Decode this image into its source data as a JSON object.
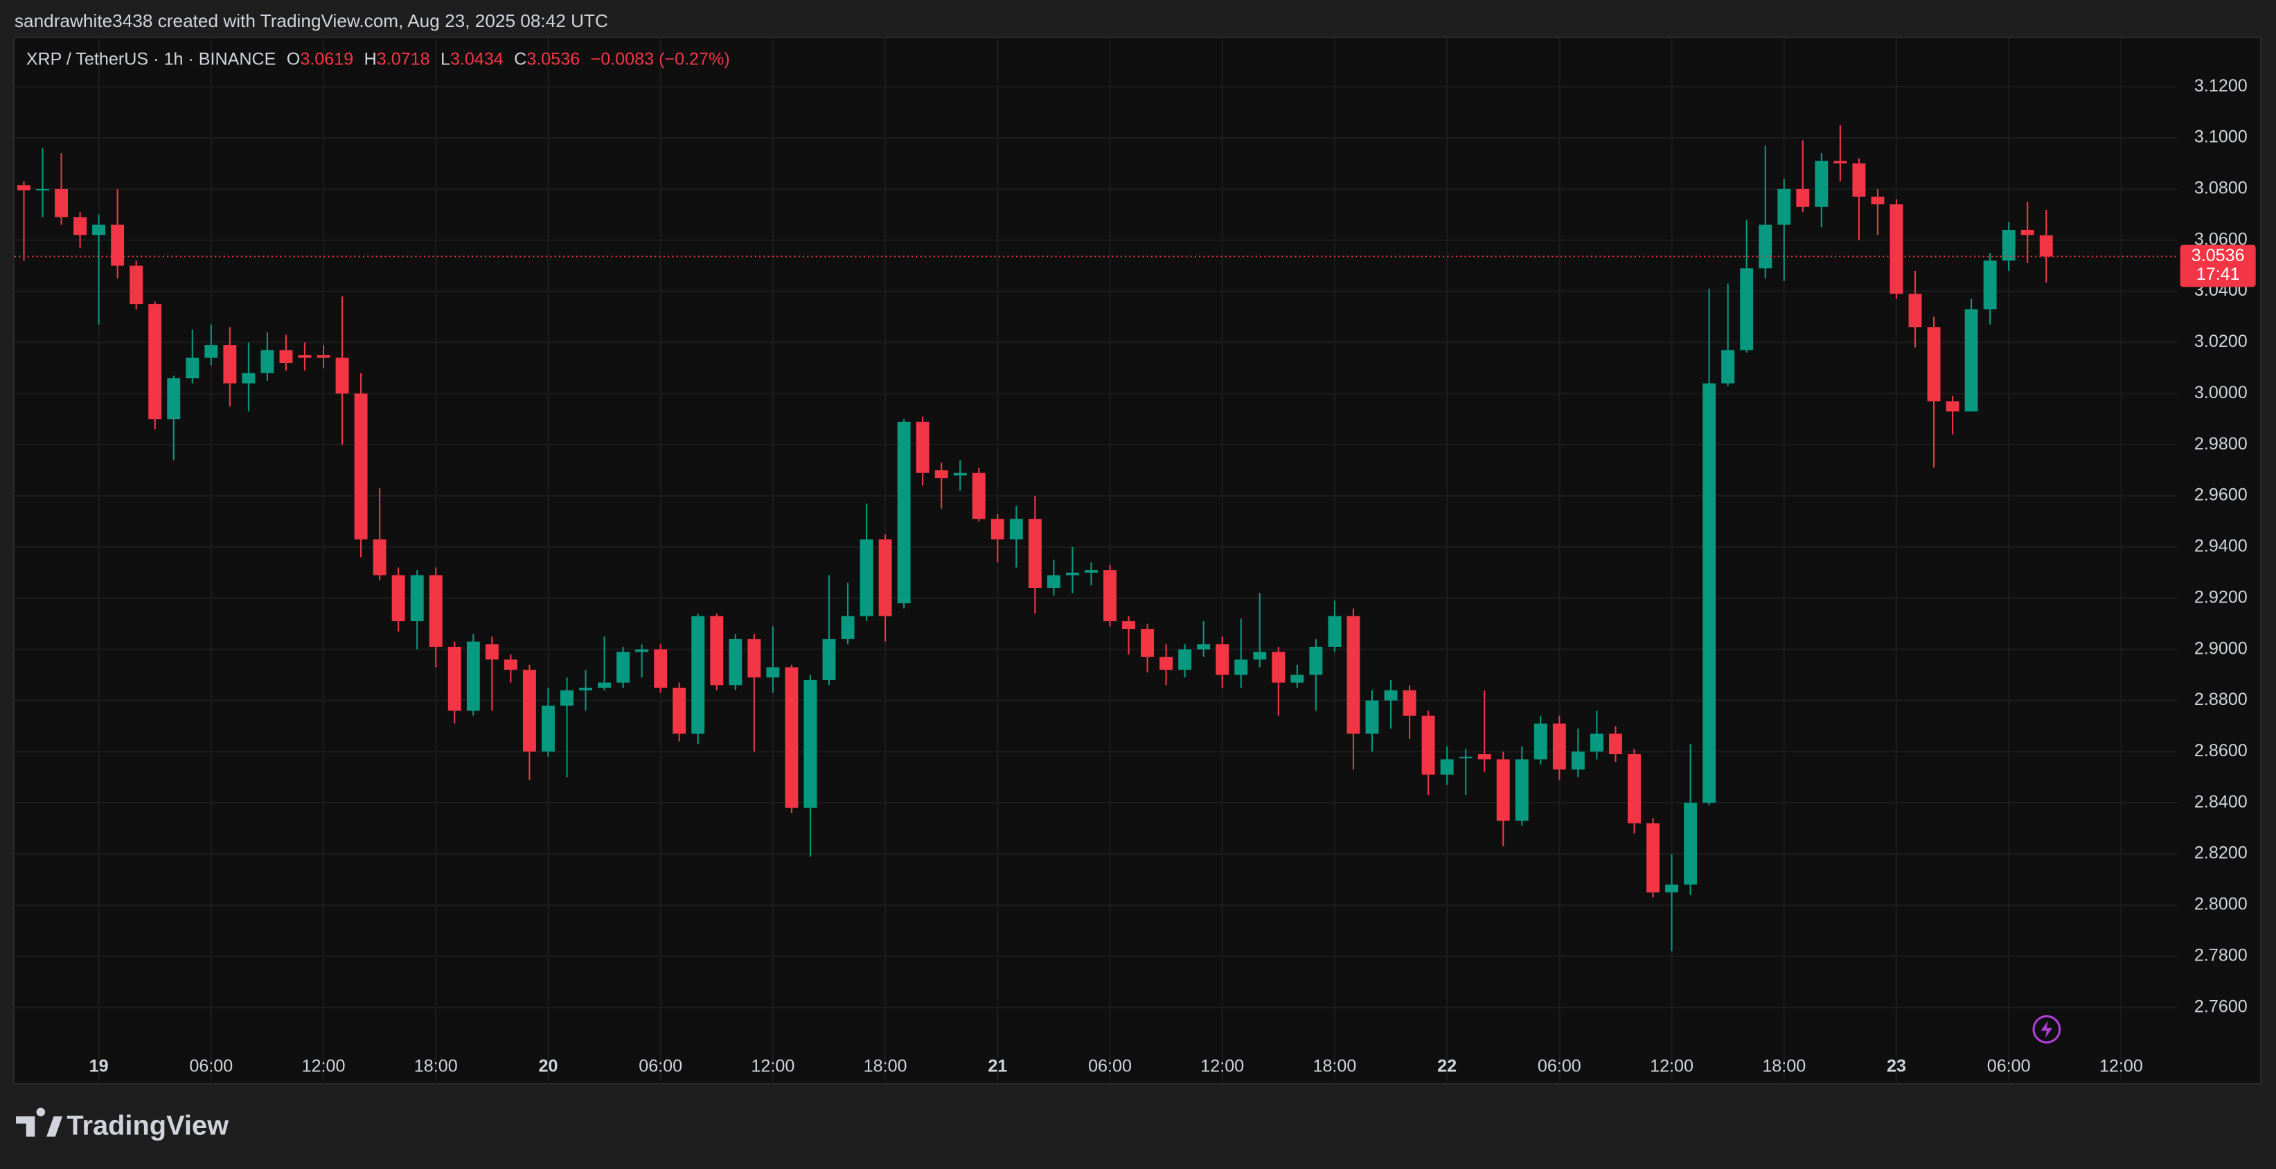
{
  "header": "sandrawhite3438 created with TradingView.com, Aug 23, 2025 08:42 UTC",
  "brand": "TradingView",
  "chart_data": {
    "type": "candlestick",
    "symbol": "XRP / TetherUS · 1h · BINANCE",
    "ohlc_keys": [
      "O",
      "H",
      "L",
      "C"
    ],
    "change": {
      "value": -0.0083,
      "label": "−0.0083"
    },
    "change_pct": {
      "value": -0.27,
      "label": "(−0.27%)"
    },
    "countdown": "17:41",
    "up_color": "#089981",
    "down_color": "#f23645",
    "grid": true,
    "x": [
      "Aug 18 20:00",
      "Aug 18 21:00",
      "Aug 18 22:00",
      "Aug 18 23:00",
      "Aug 19 00:00",
      "Aug 19 01:00",
      "Aug 19 02:00",
      "Aug 19 03:00",
      "Aug 19 04:00",
      "Aug 19 05:00",
      "Aug 19 06:00",
      "Aug 19 07:00",
      "Aug 19 08:00",
      "Aug 19 09:00",
      "Aug 19 10:00",
      "Aug 19 11:00",
      "Aug 19 12:00",
      "Aug 19 13:00",
      "Aug 19 14:00",
      "Aug 19 15:00",
      "Aug 19 16:00",
      "Aug 19 17:00",
      "Aug 19 18:00",
      "Aug 19 19:00",
      "Aug 19 20:00",
      "Aug 19 21:00",
      "Aug 19 22:00",
      "Aug 19 23:00",
      "Aug 20 00:00",
      "Aug 20 01:00",
      "Aug 20 02:00",
      "Aug 20 03:00",
      "Aug 20 04:00",
      "Aug 20 05:00",
      "Aug 20 06:00",
      "Aug 20 07:00",
      "Aug 20 08:00",
      "Aug 20 09:00",
      "Aug 20 10:00",
      "Aug 20 11:00",
      "Aug 20 12:00",
      "Aug 20 13:00",
      "Aug 20 14:00",
      "Aug 20 15:00",
      "Aug 20 16:00",
      "Aug 20 17:00",
      "Aug 20 18:00",
      "Aug 20 19:00",
      "Aug 20 20:00",
      "Aug 20 21:00",
      "Aug 20 22:00",
      "Aug 20 23:00",
      "Aug 21 00:00",
      "Aug 21 01:00",
      "Aug 21 02:00",
      "Aug 21 03:00",
      "Aug 21 04:00",
      "Aug 21 05:00",
      "Aug 21 06:00",
      "Aug 21 07:00",
      "Aug 21 08:00",
      "Aug 21 09:00",
      "Aug 21 10:00",
      "Aug 21 11:00",
      "Aug 21 12:00",
      "Aug 21 13:00",
      "Aug 21 14:00",
      "Aug 21 15:00",
      "Aug 21 16:00",
      "Aug 21 17:00",
      "Aug 21 18:00",
      "Aug 21 19:00",
      "Aug 21 20:00",
      "Aug 21 21:00",
      "Aug 21 22:00",
      "Aug 21 23:00",
      "Aug 22 00:00",
      "Aug 22 01:00",
      "Aug 22 02:00",
      "Aug 22 03:00",
      "Aug 22 04:00",
      "Aug 22 05:00",
      "Aug 22 06:00",
      "Aug 22 07:00",
      "Aug 22 08:00",
      "Aug 22 09:00",
      "Aug 22 10:00",
      "Aug 22 11:00",
      "Aug 22 12:00",
      "Aug 22 13:00",
      "Aug 22 14:00",
      "Aug 22 15:00",
      "Aug 22 16:00",
      "Aug 22 17:00",
      "Aug 22 18:00",
      "Aug 22 19:00",
      "Aug 22 20:00",
      "Aug 22 21:00",
      "Aug 22 22:00",
      "Aug 22 23:00",
      "Aug 23 00:00",
      "Aug 23 01:00",
      "Aug 23 02:00",
      "Aug 23 03:00",
      "Aug 23 04:00",
      "Aug 23 05:00",
      "Aug 23 06:00",
      "Aug 23 07:00",
      "Aug 23 08:00"
    ],
    "open": [
      3.0815,
      3.0795,
      3.08,
      3.069,
      3.062,
      3.066,
      3.05,
      3.035,
      2.99,
      3.006,
      3.014,
      3.019,
      3.004,
      3.008,
      3.017,
      3.015,
      3.015,
      3.014,
      3.0,
      2.943,
      2.929,
      2.911,
      2.929,
      2.901,
      2.876,
      2.902,
      2.896,
      2.892,
      2.86,
      2.878,
      2.884,
      2.885,
      2.887,
      2.899,
      2.9,
      2.885,
      2.867,
      2.913,
      2.886,
      2.904,
      2.889,
      2.893,
      2.838,
      2.888,
      2.904,
      2.913,
      2.943,
      2.918,
      2.989,
      2.97,
      2.968,
      2.969,
      2.951,
      2.943,
      2.951,
      2.924,
      2.929,
      2.93,
      2.931,
      2.911,
      2.908,
      2.897,
      2.892,
      2.9,
      2.902,
      2.89,
      2.896,
      2.899,
      2.887,
      2.89,
      2.901,
      2.913,
      2.867,
      2.88,
      2.884,
      2.874,
      2.851,
      2.858,
      2.859,
      2.857,
      2.833,
      2.857,
      2.871,
      2.853,
      2.86,
      2.867,
      2.859,
      2.832,
      2.805,
      2.808,
      2.84,
      3.004,
      3.017,
      3.049,
      3.066,
      3.08,
      3.073,
      3.091,
      3.09,
      3.077,
      3.074,
      3.039,
      3.026,
      2.997,
      2.993,
      3.033,
      3.052,
      3.064,
      3.0619
    ],
    "high": [
      3.083,
      3.096,
      3.094,
      3.071,
      3.07,
      3.08,
      3.052,
      3.036,
      3.007,
      3.025,
      3.027,
      3.026,
      3.02,
      3.024,
      3.023,
      3.02,
      3.019,
      3.038,
      3.008,
      2.963,
      2.932,
      2.931,
      2.932,
      2.903,
      2.906,
      2.905,
      2.898,
      2.894,
      2.885,
      2.889,
      2.892,
      2.905,
      2.901,
      2.902,
      2.902,
      2.887,
      2.914,
      2.914,
      2.906,
      2.906,
      2.909,
      2.894,
      2.89,
      2.929,
      2.926,
      2.957,
      2.945,
      2.99,
      2.991,
      2.973,
      2.974,
      2.971,
      2.953,
      2.956,
      2.96,
      2.935,
      2.94,
      2.934,
      2.933,
      2.913,
      2.91,
      2.902,
      2.902,
      2.911,
      2.905,
      2.912,
      2.922,
      2.901,
      2.894,
      2.904,
      2.919,
      2.916,
      2.884,
      2.888,
      2.886,
      2.876,
      2.862,
      2.861,
      2.884,
      2.86,
      2.862,
      2.874,
      2.874,
      2.869,
      2.876,
      2.87,
      2.861,
      2.834,
      2.82,
      2.863,
      3.041,
      3.043,
      3.068,
      3.097,
      3.084,
      3.099,
      3.094,
      3.105,
      3.092,
      3.08,
      3.076,
      3.048,
      3.03,
      2.999,
      3.037,
      3.055,
      3.067,
      3.075,
      3.0718
    ],
    "low": [
      3.052,
      3.069,
      3.066,
      3.057,
      3.027,
      3.045,
      3.033,
      2.986,
      2.974,
      3.004,
      3.011,
      2.995,
      2.993,
      3.005,
      3.009,
      3.009,
      3.01,
      2.98,
      2.936,
      2.927,
      2.907,
      2.9,
      2.893,
      2.871,
      2.874,
      2.876,
      2.887,
      2.849,
      2.858,
      2.85,
      2.876,
      2.884,
      2.885,
      2.889,
      2.883,
      2.864,
      2.863,
      2.884,
      2.884,
      2.86,
      2.883,
      2.836,
      2.819,
      2.886,
      2.902,
      2.911,
      2.903,
      2.916,
      2.964,
      2.955,
      2.962,
      2.95,
      2.934,
      2.932,
      2.914,
      2.921,
      2.922,
      2.925,
      2.909,
      2.898,
      2.891,
      2.886,
      2.889,
      2.897,
      2.885,
      2.885,
      2.893,
      2.874,
      2.885,
      2.876,
      2.899,
      2.853,
      2.86,
      2.869,
      2.865,
      2.843,
      2.847,
      2.843,
      2.852,
      2.823,
      2.831,
      2.855,
      2.849,
      2.85,
      2.857,
      2.856,
      2.828,
      2.803,
      2.782,
      2.804,
      2.839,
      3.003,
      3.016,
      3.045,
      3.044,
      3.071,
      3.065,
      3.083,
      3.06,
      3.062,
      3.037,
      3.018,
      2.971,
      2.984,
      2.993,
      3.027,
      3.048,
      3.051,
      3.0434
    ],
    "close": [
      3.0795,
      3.08,
      3.069,
      3.062,
      3.066,
      3.05,
      3.035,
      2.99,
      3.006,
      3.014,
      3.019,
      3.004,
      3.008,
      3.017,
      3.012,
      3.014,
      3.014,
      3.0,
      2.943,
      2.929,
      2.911,
      2.929,
      2.901,
      2.876,
      2.903,
      2.896,
      2.892,
      2.86,
      2.878,
      2.884,
      2.885,
      2.887,
      2.899,
      2.9,
      2.885,
      2.867,
      2.913,
      2.886,
      2.904,
      2.889,
      2.893,
      2.838,
      2.888,
      2.904,
      2.913,
      2.943,
      2.913,
      2.989,
      2.969,
      2.967,
      2.969,
      2.951,
      2.943,
      2.951,
      2.924,
      2.929,
      2.93,
      2.931,
      2.911,
      2.908,
      2.897,
      2.892,
      2.9,
      2.902,
      2.89,
      2.896,
      2.899,
      2.887,
      2.89,
      2.901,
      2.913,
      2.867,
      2.88,
      2.884,
      2.874,
      2.851,
      2.857,
      2.858,
      2.857,
      2.833,
      2.857,
      2.871,
      2.853,
      2.86,
      2.867,
      2.859,
      2.832,
      2.805,
      2.808,
      2.84,
      3.004,
      3.017,
      3.049,
      3.066,
      3.08,
      3.073,
      3.091,
      3.09,
      3.077,
      3.074,
      3.039,
      3.026,
      2.997,
      2.993,
      3.033,
      3.052,
      3.064,
      3.062,
      3.0536
    ],
    "ylim": [
      2.731,
      3.139
    ],
    "yticks": [
      {
        "value": 2.76,
        "label": "2.7600"
      },
      {
        "value": 2.78,
        "label": "2.7800"
      },
      {
        "value": 2.8,
        "label": "2.8000"
      },
      {
        "value": 2.82,
        "label": "2.8200"
      },
      {
        "value": 2.84,
        "label": "2.8400"
      },
      {
        "value": 2.86,
        "label": "2.8600"
      },
      {
        "value": 2.88,
        "label": "2.8800"
      },
      {
        "value": 2.9,
        "label": "2.9000"
      },
      {
        "value": 2.92,
        "label": "2.9200"
      },
      {
        "value": 2.94,
        "label": "2.9400"
      },
      {
        "value": 2.96,
        "label": "2.9600"
      },
      {
        "value": 2.98,
        "label": "2.9800"
      },
      {
        "value": 3.0,
        "label": "3.0000"
      },
      {
        "value": 3.02,
        "label": "3.0200"
      },
      {
        "value": 3.04,
        "label": "3.0400"
      },
      {
        "value": 3.06,
        "label": "3.0600"
      },
      {
        "value": 3.08,
        "label": "3.0800"
      },
      {
        "value": 3.1,
        "label": "3.1000"
      },
      {
        "value": 3.12,
        "label": "3.1200"
      }
    ],
    "xlim": [
      "Aug 18 19:30",
      "Aug 23 15:00"
    ],
    "xticks": [
      {
        "value": "Aug 19 00:00",
        "label": "19"
      },
      {
        "value": "Aug 19 06:00",
        "label": "06:00"
      },
      {
        "value": "Aug 19 12:00",
        "label": "12:00"
      },
      {
        "value": "Aug 19 18:00",
        "label": "18:00"
      },
      {
        "value": "Aug 20 00:00",
        "label": "20"
      },
      {
        "value": "Aug 20 06:00",
        "label": "06:00"
      },
      {
        "value": "Aug 20 12:00",
        "label": "12:00"
      },
      {
        "value": "Aug 20 18:00",
        "label": "18:00"
      },
      {
        "value": "Aug 21 00:00",
        "label": "21"
      },
      {
        "value": "Aug 21 06:00",
        "label": "06:00"
      },
      {
        "value": "Aug 21 12:00",
        "label": "12:00"
      },
      {
        "value": "Aug 21 18:00",
        "label": "18:00"
      },
      {
        "value": "Aug 22 00:00",
        "label": "22"
      },
      {
        "value": "Aug 22 06:00",
        "label": "06:00"
      },
      {
        "value": "Aug 22 12:00",
        "label": "12:00"
      },
      {
        "value": "Aug 22 18:00",
        "label": "18:00"
      },
      {
        "value": "Aug 23 00:00",
        "label": "23"
      },
      {
        "value": "Aug 23 06:00",
        "label": "06:00"
      },
      {
        "value": "Aug 23 12:00",
        "label": "12:00"
      }
    ]
  }
}
